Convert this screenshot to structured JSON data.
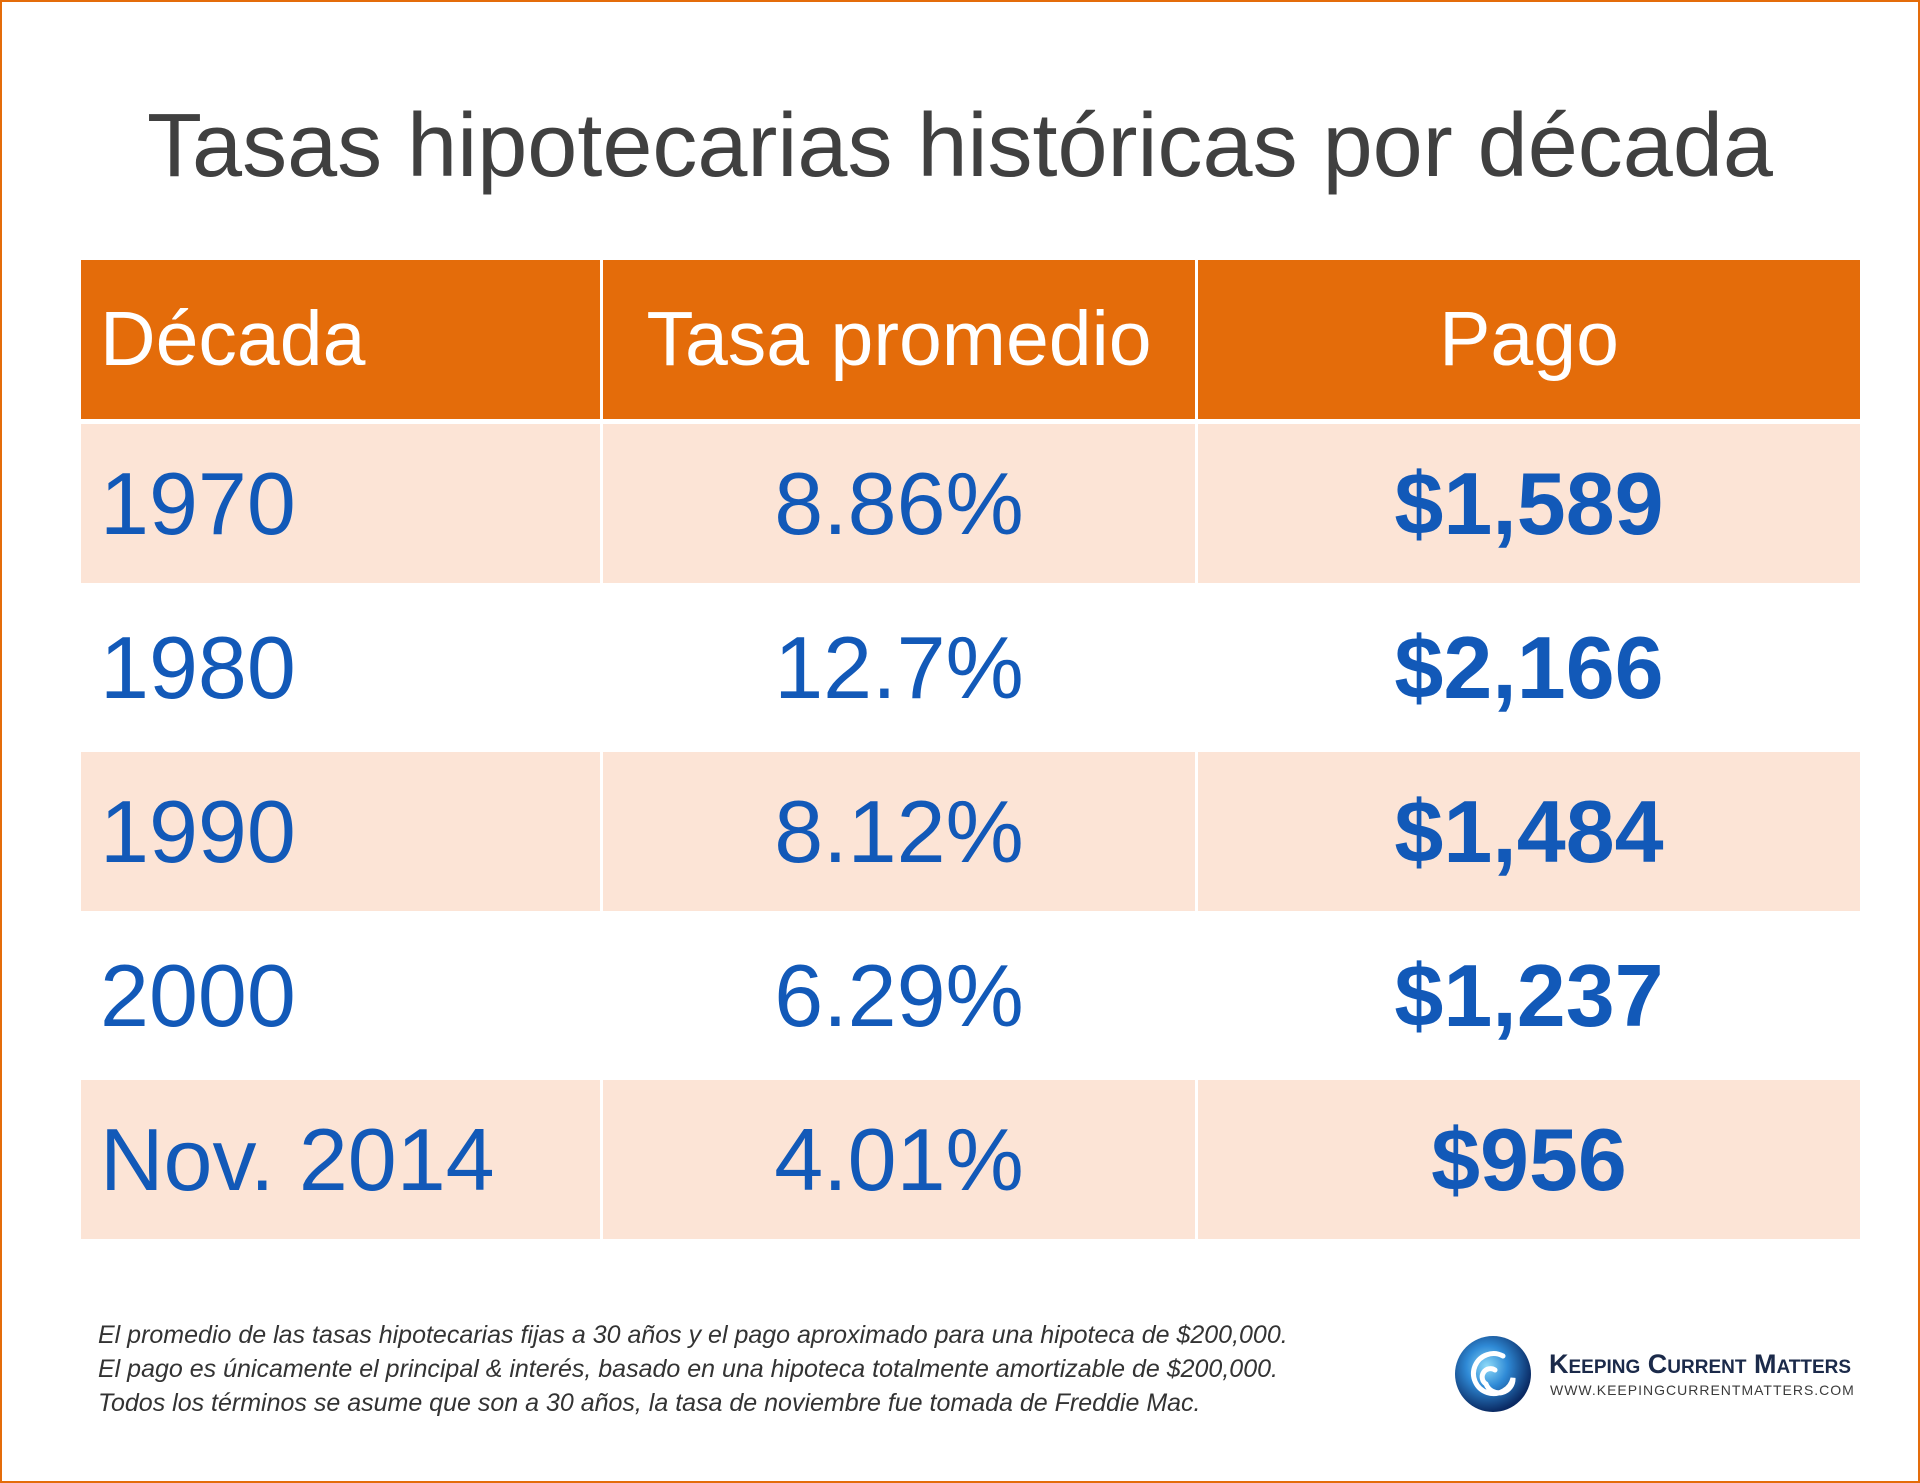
{
  "colors": {
    "header_background": "#E46C0A",
    "shaded_row": "#FCE4D6",
    "value_text": "#1259B8",
    "title_text": "#404040",
    "footer_text": "#333333",
    "logo_text": "#1B2A4A",
    "page_border": "#E46C0A"
  },
  "chart_data": {
    "type": "table",
    "title": "Tasas hipotecarias históricas por década",
    "columns": [
      "Década",
      "Tasa promedio",
      "Pago"
    ],
    "rows": [
      [
        "1970",
        "8.86%",
        "$1,589"
      ],
      [
        "1980",
        "12.7%",
        "$2,166"
      ],
      [
        "1990",
        "8.12%",
        "$1,484"
      ],
      [
        "2000",
        "6.29%",
        "$1,237"
      ],
      [
        "Nov. 2014",
        "4.01%",
        "$956"
      ]
    ]
  },
  "footer": {
    "lines": [
      "El promedio de las tasas hipotecarias fijas a 30 años y el pago aproximado para una hipoteca de $200,000.",
      "El pago es únicamente el principal & interés, basado en una hipoteca totalmente amortizable de $200,000.",
      "Todos los términos se asume que son a 30 años, la tasa de noviembre fue tomada de Freddie Mac."
    ]
  },
  "logo": {
    "icon": "swirl-icon",
    "name": "Keeping Current Matters",
    "url": "WWW.KEEPINGCURRENTMATTERS.COM"
  }
}
